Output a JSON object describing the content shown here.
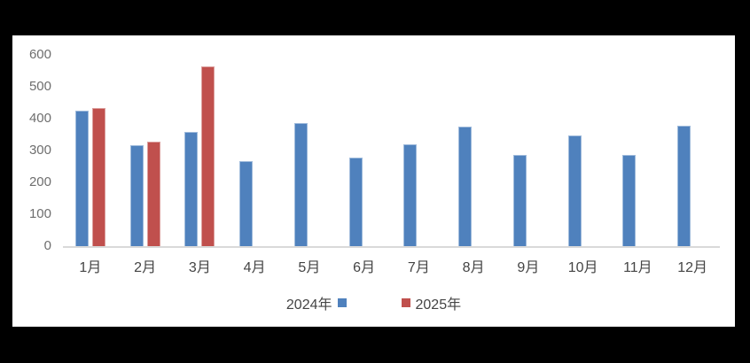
{
  "page": {
    "background_color": "#000000",
    "panel_background_color": "#ffffff"
  },
  "chart_data": {
    "type": "bar",
    "title": "",
    "xlabel": "",
    "ylabel": "",
    "categories": [
      "1月",
      "2月",
      "3月",
      "4月",
      "5月",
      "6月",
      "7月",
      "8月",
      "9月",
      "10月",
      "11月",
      "12月"
    ],
    "series": [
      {
        "name": "2024年",
        "color": "#4F81BD",
        "values": [
          425,
          318,
          357,
          268,
          387,
          278,
          320,
          375,
          287,
          348,
          287,
          377
        ]
      },
      {
        "name": "2025年",
        "color": "#C0504D",
        "values": [
          434,
          329,
          565,
          null,
          null,
          null,
          null,
          null,
          null,
          null,
          null,
          null
        ]
      }
    ],
    "ylim": [
      0,
      600
    ],
    "yticks": [
      0,
      100,
      200,
      300,
      400,
      500,
      600
    ],
    "grid": false,
    "legend_position": "bottom",
    "axis_line_color": "#d9d9d9",
    "tick_text_color": "#6e6e6e",
    "category_text_color": "#444444"
  }
}
